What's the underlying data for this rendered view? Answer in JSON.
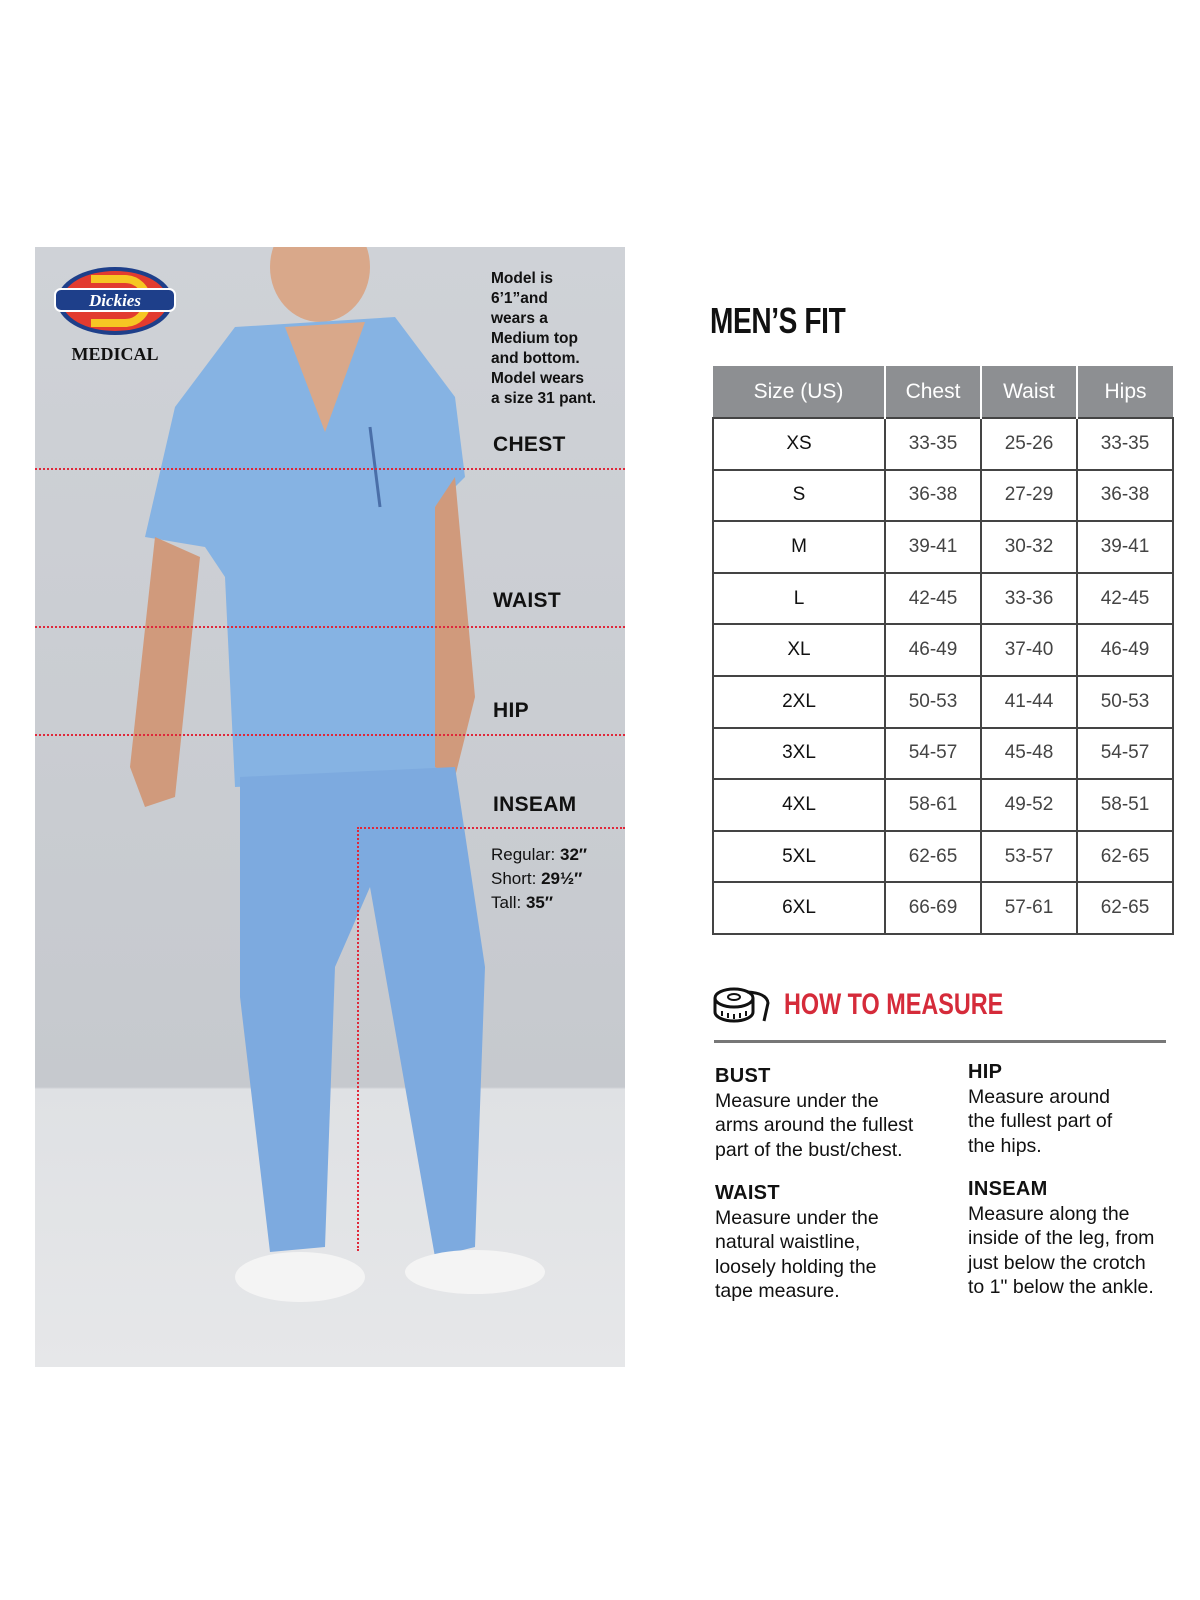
{
  "brand": {
    "name": "Dickies",
    "sub": "MEDICAL"
  },
  "model_note": [
    "Model is",
    "6’1”and",
    "wears a",
    "Medium top",
    "and bottom.",
    "Model wears",
    "a size 31 pant."
  ],
  "measure_labels": {
    "chest": "CHEST",
    "waist": "WAIST",
    "hip": "HIP",
    "inseam": "INSEAM"
  },
  "inseam": [
    {
      "label": "Regular:",
      "value": "32″"
    },
    {
      "label": "Short:",
      "value": "29½″"
    },
    {
      "label": "Tall:",
      "value": "35″"
    }
  ],
  "title": "MEN’S FIT",
  "table": {
    "headers": [
      "Size (US)",
      "Chest",
      "Waist",
      "Hips"
    ],
    "rows": [
      [
        "XS",
        "33-35",
        "25-26",
        "33-35"
      ],
      [
        "S",
        "36-38",
        "27-29",
        "36-38"
      ],
      [
        "M",
        "39-41",
        "30-32",
        "39-41"
      ],
      [
        "L",
        "42-45",
        "33-36",
        "42-45"
      ],
      [
        "XL",
        "46-49",
        "37-40",
        "46-49"
      ],
      [
        "2XL",
        "50-53",
        "41-44",
        "50-53"
      ],
      [
        "3XL",
        "54-57",
        "45-48",
        "54-57"
      ],
      [
        "4XL",
        "58-61",
        "49-52",
        "58-51"
      ],
      [
        "5XL",
        "62-65",
        "53-57",
        "62-65"
      ],
      [
        "6XL",
        "66-69",
        "57-61",
        "62-65"
      ]
    ]
  },
  "how_to": {
    "title": "HOW TO MEASURE",
    "icon": "tape-measure-icon",
    "items": [
      {
        "h": "BUST",
        "lines": [
          "Measure under the",
          "arms around the fullest",
          "part of the bust/chest."
        ]
      },
      {
        "h": "WAIST",
        "lines": [
          "Measure under the",
          "natural waistline,",
          "loosely holding the",
          "tape measure."
        ]
      },
      {
        "h": "HIP",
        "lines": [
          "Measure around",
          "the fullest part of",
          "the hips."
        ]
      },
      {
        "h": "INSEAM",
        "lines": [
          "Measure along the",
          "inside of the leg, from",
          "just below the crotch",
          "to 1\" below the ankle."
        ]
      }
    ]
  },
  "colors": {
    "accent": "#d52b3a",
    "header": "#8d8f92",
    "scrubs": "#7faee0"
  }
}
